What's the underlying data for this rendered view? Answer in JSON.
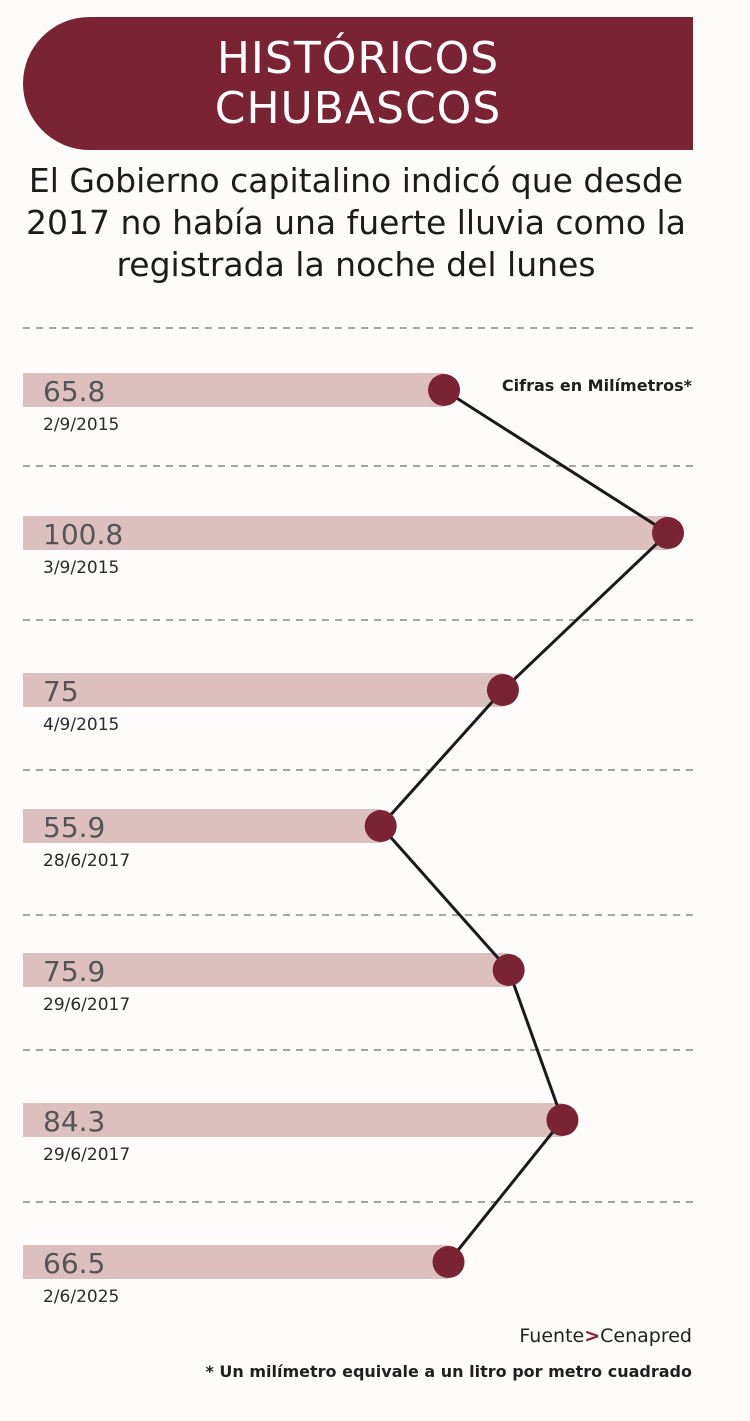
{
  "header": {
    "title_line1": "HISTÓRICOS",
    "title_line2": "CHUBASCOS",
    "subtitle_line1": "El Gobierno capitalino indicó que desde",
    "subtitle_line2": "2017 no había una fuerte lluvia como la",
    "subtitle_line3": "registrada la noche del lunes"
  },
  "note": "Cifras en Milímetros*",
  "source": {
    "label": "Fuente",
    "separator": ">",
    "name": "Cenapred"
  },
  "footnote": "* Un milímetro equivale a un litro por metro cuadrado",
  "colors": {
    "accent": "#7a2334",
    "bar": "#dcc0c0",
    "line": "#1a1a1a",
    "value_text": "#555555"
  },
  "chart_data": {
    "type": "line",
    "orientation": "horizontal",
    "unit": "Milímetros",
    "categories": [
      "2/9/2015",
      "3/9/2015",
      "4/9/2015",
      "28/6/2017",
      "29/6/2017",
      "29/6/2017",
      "2/6/2025"
    ],
    "values": [
      65.8,
      100.8,
      75,
      55.9,
      75.9,
      84.3,
      66.5
    ],
    "value_labels": [
      "65.8",
      "100.8",
      "75",
      "55.9",
      "75.9",
      "84.3",
      "66.5"
    ],
    "grid": true
  }
}
